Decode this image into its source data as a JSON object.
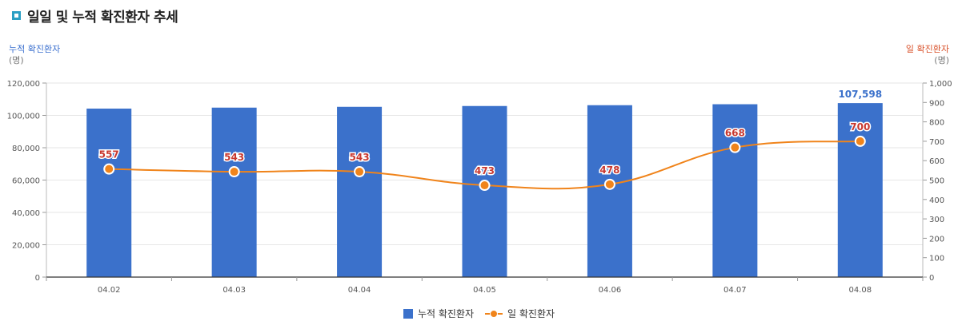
{
  "title": "일일 및 누적 확진환자 추세",
  "colors": {
    "bar": "#3b71cb",
    "line": "#f0841b",
    "left_axis_title": "#3a6fcf",
    "right_axis_title": "#d9512a",
    "line_label": "#c8382f"
  },
  "axes": {
    "left": {
      "title": "누적 확진환자",
      "unit": "(명)"
    },
    "right": {
      "title": "일 확진환자",
      "unit": "(명)"
    }
  },
  "legend": {
    "bar_label": "누적 확진환자",
    "line_label": "일 확진환자"
  },
  "chart_data": {
    "type": "bar",
    "categories": [
      "04.02",
      "04.03",
      "04.04",
      "04.05",
      "04.06",
      "04.07",
      "04.08"
    ],
    "series": [
      {
        "name": "누적 확진환자",
        "type": "bar",
        "axis": "left",
        "values": [
          104200,
          104800,
          105300,
          105800,
          106300,
          106900,
          107598
        ]
      },
      {
        "name": "일 확진환자",
        "type": "line",
        "axis": "right",
        "values": [
          557,
          543,
          543,
          473,
          478,
          668,
          700
        ]
      }
    ],
    "bar_label": {
      "index": 6,
      "text": "107,598"
    },
    "line_labels": [
      "557",
      "543",
      "543",
      "473",
      "478",
      "668",
      "700"
    ],
    "left_ticks": [
      "0",
      "20,000",
      "40,000",
      "60,000",
      "80,000",
      "100,000",
      "120,000"
    ],
    "right_ticks": [
      "0",
      "100",
      "200",
      "300",
      "400",
      "500",
      "600",
      "700",
      "800",
      "900",
      "1,000"
    ],
    "ylim_left": [
      0,
      120000
    ],
    "ylim_right": [
      0,
      1000
    ],
    "grid": true,
    "legend_position": "bottom"
  }
}
